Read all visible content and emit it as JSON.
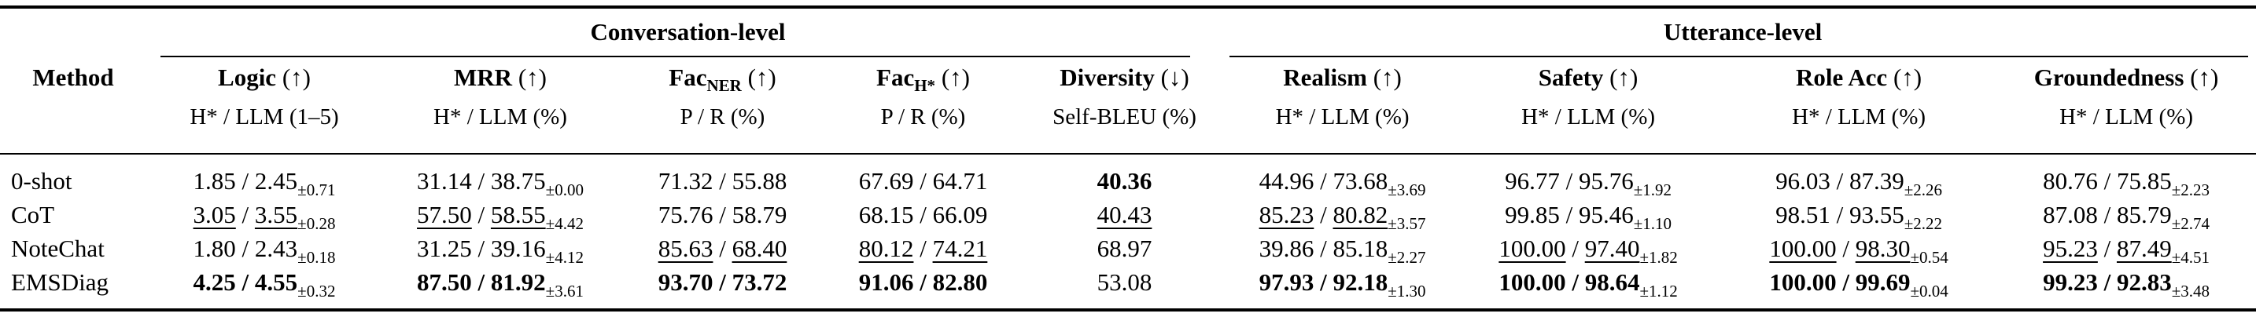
{
  "table": {
    "group_header": {
      "conversation": {
        "label": "Conversation-level",
        "span": 5
      },
      "utterance": {
        "label": "Utterance-level",
        "span": 4
      }
    },
    "method_header": "Method",
    "columns": [
      {
        "name": "logic",
        "label": "Logic",
        "label_sub": "",
        "arrow": "↑",
        "unit": "H* / LLM (1–5)"
      },
      {
        "name": "mrr",
        "label": "MRR",
        "label_sub": "",
        "arrow": "↑",
        "unit": "H* / LLM (%)"
      },
      {
        "name": "fac-ner",
        "label": "Fac",
        "label_sub": "NER",
        "arrow": "↑",
        "unit": "P / R (%)"
      },
      {
        "name": "fac-h",
        "label": "Fac",
        "label_sub": "H*",
        "arrow": "↑",
        "unit": "P / R (%)"
      },
      {
        "name": "diversity",
        "label": "Diversity",
        "label_sub": "",
        "arrow": "↓",
        "unit": "Self-BLEU (%)"
      },
      {
        "name": "realism",
        "label": "Realism",
        "label_sub": "",
        "arrow": "↑",
        "unit": "H* / LLM (%)"
      },
      {
        "name": "safety",
        "label": "Safety",
        "label_sub": "",
        "arrow": "↑",
        "unit": "H* / LLM (%)"
      },
      {
        "name": "role-acc",
        "label": "Role Acc",
        "label_sub": "",
        "arrow": "↑",
        "unit": "H* / LLM (%)"
      },
      {
        "name": "groundedness",
        "label": "Groundedness",
        "label_sub": "",
        "arrow": "↑",
        "unit": "H* / LLM (%)"
      }
    ],
    "separator": " / ",
    "rows": [
      {
        "method": "0-shot",
        "cells": [
          {
            "v1": "1.85",
            "v2": "2.45",
            "pm": "±0.71",
            "style": "normal"
          },
          {
            "v1": "31.14",
            "v2": "38.75",
            "pm": "±0.00",
            "style": "normal"
          },
          {
            "v1": "71.32",
            "v2": "55.88",
            "style": "normal"
          },
          {
            "v1": "67.69",
            "v2": "64.71",
            "style": "normal"
          },
          {
            "v1": "40.36",
            "style": "bold"
          },
          {
            "v1": "44.96",
            "v2": "73.68",
            "pm": "±3.69",
            "style": "normal"
          },
          {
            "v1": "96.77",
            "v2": "95.76",
            "pm": "±1.92",
            "style": "normal"
          },
          {
            "v1": "96.03",
            "v2": "87.39",
            "pm": "±2.26",
            "style": "normal"
          },
          {
            "v1": "80.76",
            "v2": "75.85",
            "pm": "±2.23",
            "style": "normal"
          }
        ]
      },
      {
        "method": "CoT",
        "cells": [
          {
            "v1": "3.05",
            "v2": "3.55",
            "pm": "±0.28",
            "style": "underline"
          },
          {
            "v1": "57.50",
            "v2": "58.55",
            "pm": "±4.42",
            "style": "underline"
          },
          {
            "v1": "75.76",
            "v2": "58.79",
            "style": "normal"
          },
          {
            "v1": "68.15",
            "v2": "66.09",
            "style": "normal"
          },
          {
            "v1": "40.43",
            "style": "underline"
          },
          {
            "v1": "85.23",
            "v2": "80.82",
            "pm": "±3.57",
            "style": "underline"
          },
          {
            "v1": "99.85",
            "v2": "95.46",
            "pm": "±1.10",
            "style": "normal"
          },
          {
            "v1": "98.51",
            "v2": "93.55",
            "pm": "±2.22",
            "style": "normal"
          },
          {
            "v1": "87.08",
            "v2": "85.79",
            "pm": "±2.74",
            "style": "normal"
          }
        ]
      },
      {
        "method": "NoteChat",
        "cells": [
          {
            "v1": "1.80",
            "v2": "2.43",
            "pm": "±0.18",
            "style": "normal"
          },
          {
            "v1": "31.25",
            "v2": "39.16",
            "pm": "±4.12",
            "style": "normal"
          },
          {
            "v1": "85.63",
            "v2": "68.40",
            "style": "underline"
          },
          {
            "v1": "80.12",
            "v2": "74.21",
            "style": "underline"
          },
          {
            "v1": "68.97",
            "style": "normal"
          },
          {
            "v1": "39.86",
            "v2": "85.18",
            "pm": "±2.27",
            "style": "normal"
          },
          {
            "v1": "100.00",
            "v2": "97.40",
            "pm": "±1.82",
            "style": "underline"
          },
          {
            "v1": "100.00",
            "v2": "98.30",
            "pm": "±0.54",
            "style": "underline"
          },
          {
            "v1": "95.23",
            "v2": "87.49",
            "pm": "±4.51",
            "style": "underline"
          }
        ]
      },
      {
        "method": "EMSDiag",
        "cells": [
          {
            "v1": "4.25",
            "v2": "4.55",
            "pm": "±0.32",
            "style": "bold"
          },
          {
            "v1": "87.50",
            "v2": "81.92",
            "pm": "±3.61",
            "style": "bold"
          },
          {
            "v1": "93.70",
            "v2": "73.72",
            "style": "bold"
          },
          {
            "v1": "91.06",
            "v2": "82.80",
            "style": "bold"
          },
          {
            "v1": "53.08",
            "style": "normal"
          },
          {
            "v1": "97.93",
            "v2": "92.18",
            "pm": "±1.30",
            "style": "bold"
          },
          {
            "v1": "100.00",
            "v2": "98.64",
            "pm": "±1.12",
            "style": "bold"
          },
          {
            "v1": "100.00",
            "v2": "99.69",
            "pm": "±0.04",
            "style": "bold"
          },
          {
            "v1": "99.23",
            "v2": "92.83",
            "pm": "±3.48",
            "style": "bold"
          }
        ]
      }
    ]
  }
}
